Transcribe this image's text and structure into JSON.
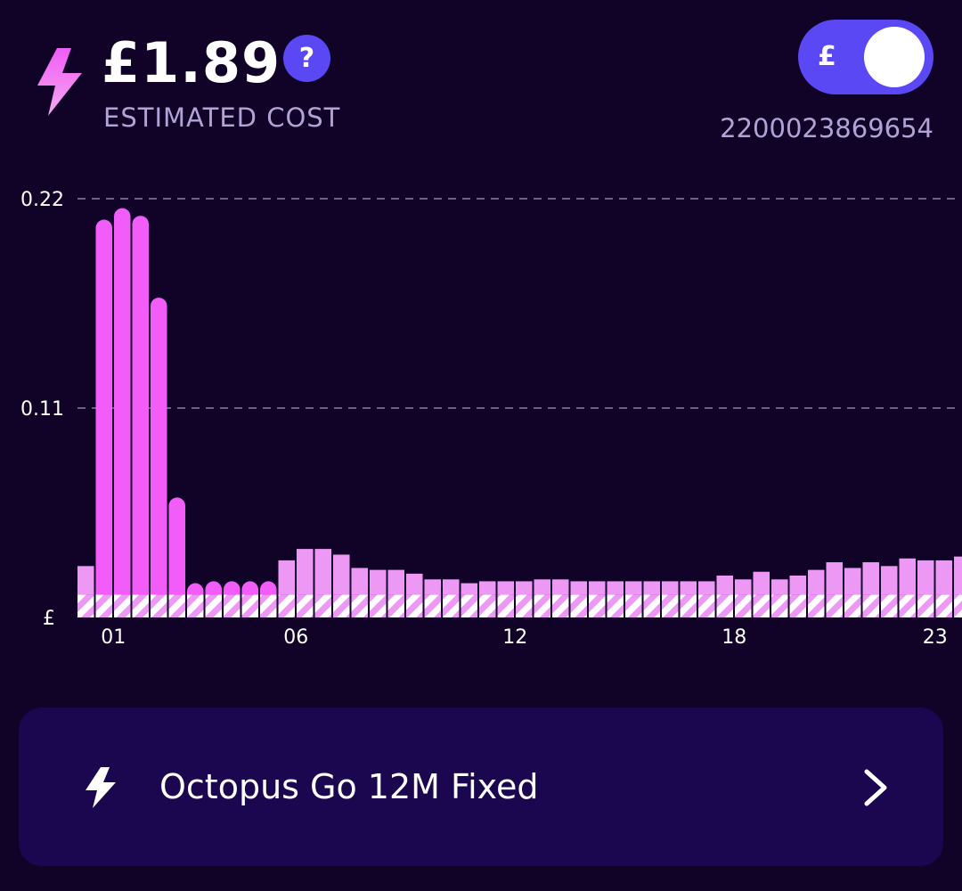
{
  "header": {
    "cost": "£1.89",
    "cost_label": "ESTIMATED COST",
    "help_label": "?",
    "bolt_icon": "lightning-bolt-icon"
  },
  "toggle": {
    "symbol": "£",
    "state": "on",
    "color": "#5a48f5"
  },
  "meter": {
    "number": "2200023869654"
  },
  "colors": {
    "background": "#100327",
    "bar_peak": "#f25cf8",
    "bar_normal": "#ee98f6",
    "accent": "#5a48f5",
    "card": "#1b0650"
  },
  "chart_data": {
    "type": "bar",
    "stacked": true,
    "ylim": [
      0,
      0.22
    ],
    "y_ticks": [
      {
        "value": 0,
        "label": "£"
      },
      {
        "value": 0.11,
        "label": "0.11"
      },
      {
        "value": 0.22,
        "label": "0.22"
      }
    ],
    "x_ticks": [
      {
        "index": 2,
        "label": "01"
      },
      {
        "index": 12,
        "label": "06"
      },
      {
        "index": 24,
        "label": "12"
      },
      {
        "index": 36,
        "label": "18"
      },
      {
        "index": 47,
        "label": "23"
      }
    ],
    "grid": "dashed",
    "standing_charge_per_slot": 0.012,
    "series": [
      {
        "values": [
          0.027,
          0.209,
          0.215,
          0.211,
          0.168,
          0.063,
          0.018,
          0.019,
          0.019,
          0.019,
          0.019,
          0.03,
          0.036,
          0.036,
          0.033,
          0.026,
          0.025,
          0.025,
          0.023,
          0.02,
          0.02,
          0.018,
          0.019,
          0.019,
          0.019,
          0.02,
          0.02,
          0.019,
          0.019,
          0.019,
          0.019,
          0.019,
          0.019,
          0.019,
          0.019,
          0.022,
          0.02,
          0.024,
          0.02,
          0.022,
          0.025,
          0.029,
          0.026,
          0.029,
          0.027,
          0.031,
          0.03,
          0.03,
          0.032
        ]
      }
    ],
    "peak_slots": [
      1,
      2,
      3,
      4,
      5,
      6,
      7,
      8,
      9,
      10
    ]
  },
  "tariff": {
    "name": "Octopus Go 12M Fixed",
    "bolt_icon": "lightning-bolt-icon",
    "chevron_icon": "chevron-right-icon"
  }
}
